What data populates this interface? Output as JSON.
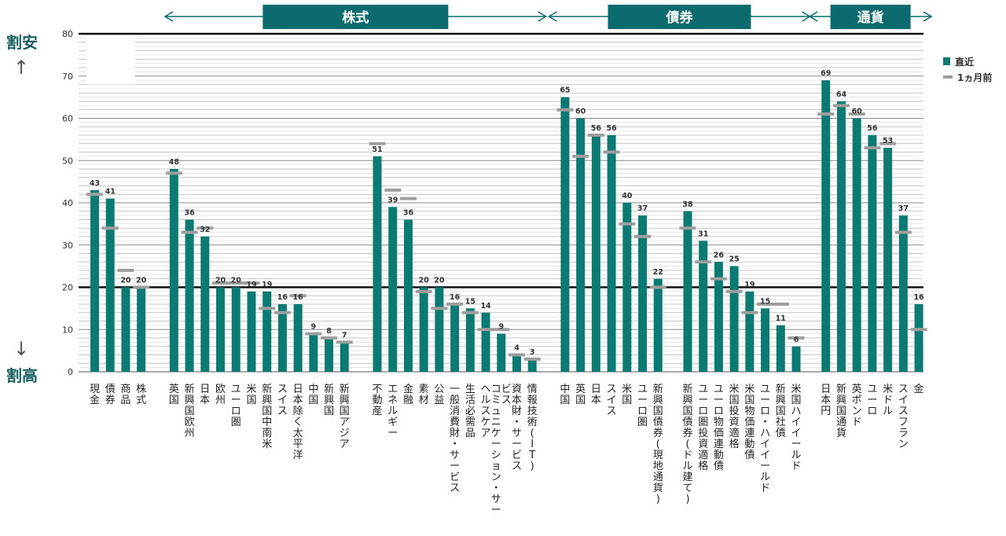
{
  "labels": {
    "cheap": "割安",
    "expensive": "割高",
    "up_arrow": "↑",
    "down_arrow": "↓"
  },
  "legend": {
    "current": "直近",
    "month_ago": "1ヵ月前"
  },
  "colors": {
    "bar": "#0a7a72",
    "marker": "#9e9e9e",
    "band": "#0c6b6e",
    "grid": "#9a9a9a"
  },
  "chart_data": {
    "type": "bar",
    "ylim": [
      0,
      80
    ],
    "yticks": [
      0,
      10,
      20,
      30,
      40,
      50,
      60,
      70,
      80
    ],
    "reference_line": 20,
    "series": [
      {
        "name": "直近",
        "values": [
          43,
          41,
          20,
          20,
          48,
          36,
          32,
          20,
          20,
          19,
          19,
          16,
          16,
          9,
          8,
          7,
          51,
          39,
          36,
          20,
          20,
          16,
          15,
          14,
          9,
          4,
          3,
          65,
          60,
          56,
          56,
          40,
          37,
          22,
          38,
          31,
          26,
          25,
          19,
          15,
          11,
          6,
          69,
          64,
          60,
          56,
          53,
          37,
          16
        ]
      },
      {
        "name": "1ヵ月前",
        "values": [
          42,
          34,
          24,
          20,
          47,
          33,
          34,
          21,
          21,
          21,
          15,
          14,
          18,
          9,
          8,
          7,
          54,
          43,
          41,
          19,
          15,
          16,
          14,
          10,
          10,
          4,
          3,
          62,
          51,
          56,
          52,
          35,
          32,
          20,
          34,
          26,
          22,
          19,
          14,
          16,
          16,
          8,
          61,
          63,
          61,
          53,
          54,
          33,
          10
        ]
      }
    ],
    "categories": [
      "現金",
      "債券",
      "商品",
      "株式",
      "英国",
      "新興国欧州",
      "日本",
      "欧州",
      "ユーロ圏",
      "米国",
      "新興国中南米",
      "スイス",
      "日本除く太平洋",
      "中国",
      "新興国",
      "新興国アジア",
      "不動産",
      "エネルギー",
      "金融",
      "素材",
      "公益",
      "一般消費財・サービス",
      "生活必需品",
      "ヘルスケア",
      "コミュニケーション・サービス",
      "資本財・サービス",
      "情報技術(IT)",
      "中国",
      "英国",
      "日本",
      "スイス",
      "米国",
      "ユーロ圏",
      "新興国債券(現地通貨)",
      "新興国債券(ドル建て)",
      "ユーロ圏投資適格",
      "ユーロ物価連動債",
      "米国投資適格",
      "米国物価連動債",
      "ユーロ・ハイイールド",
      "新興国社債",
      "米国ハイイールド",
      "日本円",
      "新興国通貨",
      "英ポンド",
      "ユーロ",
      "米ドル",
      "スイスフラン",
      "金"
    ],
    "groups": [
      {
        "label": "株式",
        "from": 4,
        "to": 26
      },
      {
        "label": "債券",
        "from": 27,
        "to": 41
      },
      {
        "label": "通貨",
        "from": 42,
        "to": 48
      }
    ]
  }
}
